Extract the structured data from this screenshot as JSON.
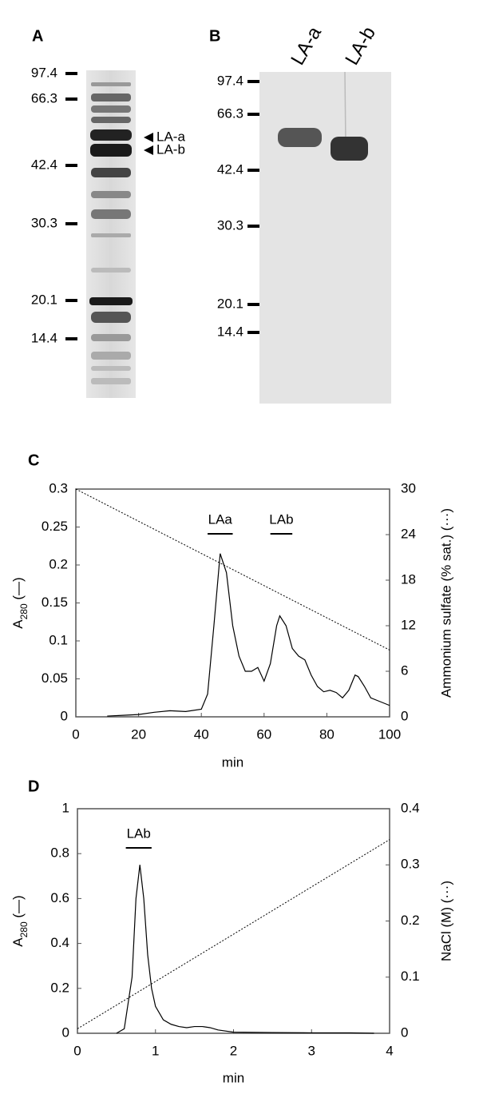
{
  "gel_a": {
    "label": "A",
    "markers": [
      97.4,
      66.3,
      42.4,
      30.3,
      20.1,
      14.4
    ],
    "arrows": [
      "LA-a",
      "LA-b"
    ]
  },
  "gel_b": {
    "label": "B",
    "lanes": [
      "LA-a",
      "LA-b"
    ],
    "markers": [
      97.4,
      66.3,
      42.4,
      30.3,
      20.1,
      14.4
    ]
  },
  "chart_data": [
    {
      "type": "line",
      "label": "C",
      "x_label": "min",
      "y_label": [
        "A",
        "280",
        " (—)"
      ],
      "y2_label": "Ammonium sulfate (% sat.) (···)",
      "xlim": [
        0,
        100
      ],
      "xticks": [
        0,
        20,
        40,
        60,
        80,
        100
      ],
      "ylim": [
        0,
        0.3
      ],
      "yticks": [
        0,
        0.05,
        0.1,
        0.15,
        0.2,
        0.25,
        0.3
      ],
      "y2lim": [
        0,
        30
      ],
      "y2ticks": [
        0,
        6,
        12,
        18,
        24,
        30
      ],
      "annotations": [
        {
          "text": "LAa",
          "x": [
            42,
            50
          ]
        },
        {
          "text": "LAb",
          "x": [
            62,
            69
          ]
        }
      ],
      "series": [
        {
          "color": "#000000",
          "line_style": "solid",
          "x": [
            10,
            15,
            20,
            25,
            30,
            35,
            40,
            42,
            44,
            46,
            48,
            50,
            52,
            54,
            56,
            58,
            60,
            62,
            64,
            65,
            67,
            69,
            71,
            73,
            75,
            77,
            79,
            81,
            83,
            85,
            87,
            89,
            90,
            92,
            94,
            97,
            100
          ],
          "values": [
            0.001,
            0.002,
            0.003,
            0.006,
            0.008,
            0.007,
            0.01,
            0.03,
            0.12,
            0.215,
            0.19,
            0.12,
            0.08,
            0.06,
            0.06,
            0.065,
            0.047,
            0.07,
            0.12,
            0.133,
            0.12,
            0.09,
            0.08,
            0.075,
            0.055,
            0.04,
            0.033,
            0.035,
            0.032,
            0.025,
            0.035,
            0.055,
            0.053,
            0.04,
            0.025,
            0.02,
            0.015
          ]
        },
        {
          "color": "#000000",
          "line_style": "dotted",
          "axis": "y2",
          "x": [
            0,
            100
          ],
          "values": [
            30,
            8.8
          ]
        }
      ]
    },
    {
      "type": "line",
      "label": "D",
      "x_label": "min",
      "y_label": [
        "A",
        "280",
        " (—)"
      ],
      "y2_label": "NaCl (M) (···)",
      "xlim": [
        0,
        4
      ],
      "xticks": [
        0,
        1,
        2,
        3,
        4
      ],
      "ylim": [
        0,
        1
      ],
      "yticks": [
        0,
        0.2,
        0.4,
        0.6,
        0.8,
        1
      ],
      "y2lim": [
        0,
        0.4
      ],
      "y2ticks": [
        0,
        0.1,
        0.2,
        0.3,
        0.4
      ],
      "annotations": [
        {
          "text": "LAb",
          "x": [
            0.62,
            0.95
          ]
        }
      ],
      "series": [
        {
          "color": "#000000",
          "line_style": "solid",
          "x": [
            0.5,
            0.6,
            0.7,
            0.75,
            0.8,
            0.85,
            0.9,
            0.95,
            1.0,
            1.1,
            1.2,
            1.3,
            1.4,
            1.5,
            1.6,
            1.7,
            1.8,
            2.0,
            2.5,
            3.0,
            3.5,
            3.8
          ],
          "values": [
            0,
            0.02,
            0.25,
            0.6,
            0.75,
            0.6,
            0.35,
            0.2,
            0.12,
            0.06,
            0.04,
            0.03,
            0.025,
            0.03,
            0.03,
            0.025,
            0.015,
            0.005,
            0.003,
            0.002,
            0.002,
            0
          ]
        },
        {
          "color": "#000000",
          "line_style": "dotted",
          "axis": "y2",
          "x": [
            0,
            4
          ],
          "values": [
            0.008,
            0.345
          ]
        }
      ]
    }
  ]
}
